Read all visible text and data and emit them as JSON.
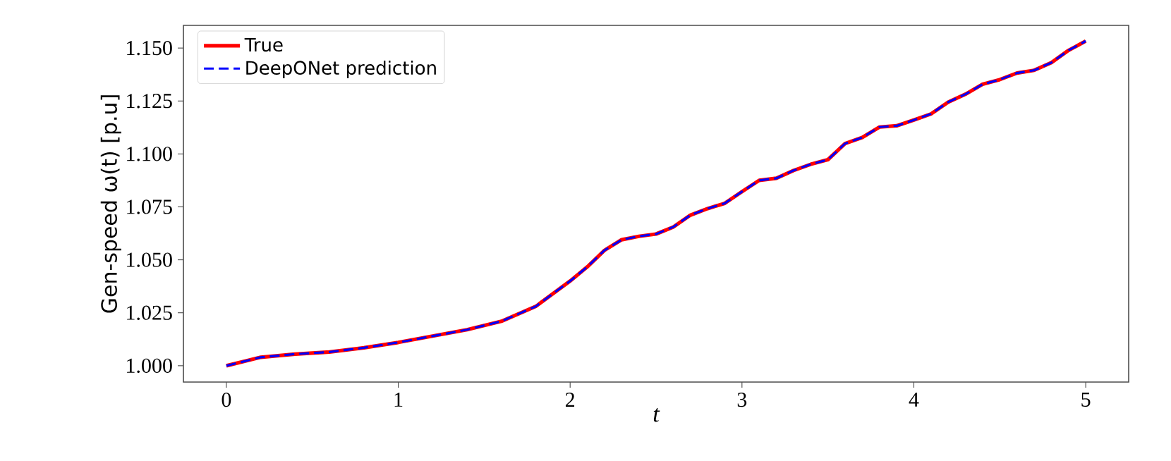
{
  "chart_data": {
    "type": "line",
    "xlabel": "t",
    "ylabel": "Gen-speed ω(t) [p.u]",
    "x": [
      0,
      0.2,
      0.4,
      0.6,
      0.8,
      1.0,
      1.2,
      1.4,
      1.6,
      1.8,
      2.0,
      2.1,
      2.2,
      2.3,
      2.4,
      2.5,
      2.6,
      2.7,
      2.8,
      2.9,
      3.0,
      3.1,
      3.2,
      3.3,
      3.4,
      3.5,
      3.6,
      3.7,
      3.8,
      3.9,
      4.0,
      4.1,
      4.2,
      4.3,
      4.4,
      4.5,
      4.6,
      4.7,
      4.8,
      4.9,
      5.0
    ],
    "series": [
      {
        "name": "True",
        "color": "#ff0000",
        "line_style": "solid",
        "values": [
          1.0,
          1.004,
          1.0055,
          1.0065,
          1.0085,
          1.011,
          1.014,
          1.017,
          1.021,
          1.028,
          1.04,
          1.0467,
          1.0545,
          1.0595,
          1.0611,
          1.0622,
          1.0655,
          1.0711,
          1.0742,
          1.0767,
          1.0822,
          1.0875,
          1.0885,
          1.0922,
          1.0951,
          1.0973,
          1.1049,
          1.1078,
          1.1127,
          1.1133,
          1.116,
          1.1189,
          1.1245,
          1.1282,
          1.1329,
          1.1351,
          1.1382,
          1.1395,
          1.1431,
          1.1489,
          1.1533
        ]
      },
      {
        "name": "DeepONet prediction",
        "color": "#0000ff",
        "line_style": "dashed",
        "values": [
          1.0,
          1.004,
          1.0055,
          1.0065,
          1.0085,
          1.011,
          1.014,
          1.017,
          1.021,
          1.028,
          1.04,
          1.0467,
          1.0545,
          1.0595,
          1.0611,
          1.0622,
          1.0655,
          1.0711,
          1.0742,
          1.0767,
          1.0822,
          1.0875,
          1.0885,
          1.0922,
          1.0951,
          1.0973,
          1.1049,
          1.1078,
          1.1127,
          1.1133,
          1.116,
          1.1189,
          1.1245,
          1.1282,
          1.1329,
          1.1351,
          1.1382,
          1.1395,
          1.1431,
          1.1489,
          1.1533
        ]
      }
    ],
    "xlim": [
      -0.25,
      5.25
    ],
    "ylim": [
      0.9923,
      1.1607
    ],
    "xticks": [
      0,
      1,
      2,
      3,
      4,
      5
    ],
    "yticks": [
      {
        "value": 1.0,
        "label": "1.000"
      },
      {
        "value": 1.025,
        "label": "1.025"
      },
      {
        "value": 1.05,
        "label": "1.050"
      },
      {
        "value": 1.075,
        "label": "1.075"
      },
      {
        "value": 1.1,
        "label": "1.100"
      },
      {
        "value": 1.125,
        "label": "1.125"
      },
      {
        "value": 1.15,
        "label": "1.150"
      }
    ],
    "grid": false,
    "legend": "top left",
    "marker": "none"
  }
}
